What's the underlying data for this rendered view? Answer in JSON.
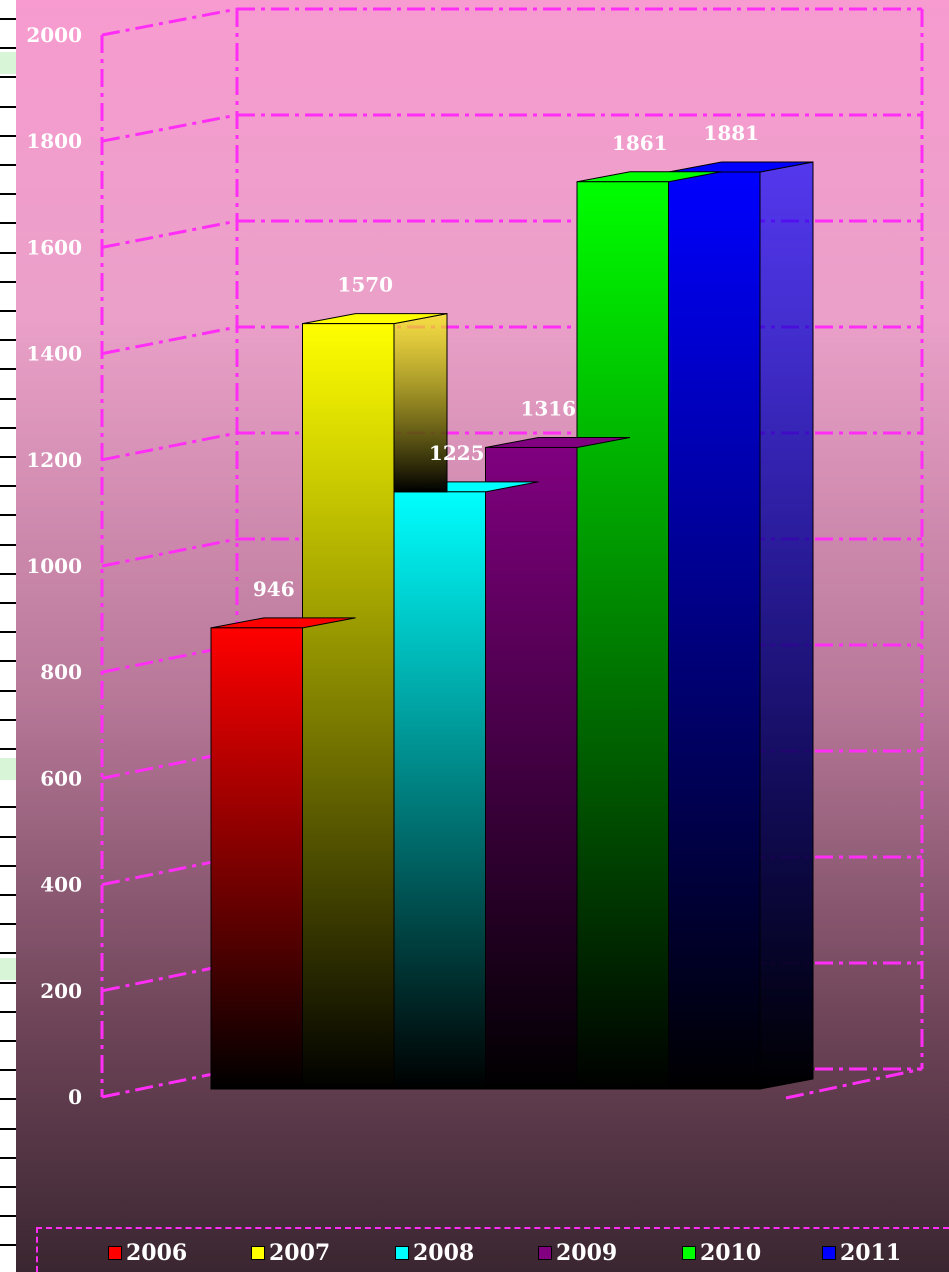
{
  "chart_data": {
    "type": "bar",
    "categories": [
      "2006",
      "2007",
      "2008",
      "2009",
      "2010",
      "2011"
    ],
    "values": [
      946,
      1570,
      1225,
      1316,
      1861,
      1881
    ],
    "value_labels": [
      "946",
      "1570",
      "1225",
      "1316",
      "1861",
      "1881"
    ],
    "colors": [
      "#ff0000",
      "#ffff00",
      "#00ffff",
      "#800080",
      "#00ff00",
      "#0000ff"
    ],
    "yticks": [
      "0",
      "200",
      "400",
      "600",
      "800",
      "1000",
      "1200",
      "1400",
      "1600",
      "1800",
      "2000"
    ],
    "ylim": [
      0,
      2000
    ],
    "title": "",
    "xlabel": "",
    "ylabel": "",
    "grid": true,
    "legend": "bottom",
    "three_d": true,
    "gridline_color": "#ff2df5"
  }
}
